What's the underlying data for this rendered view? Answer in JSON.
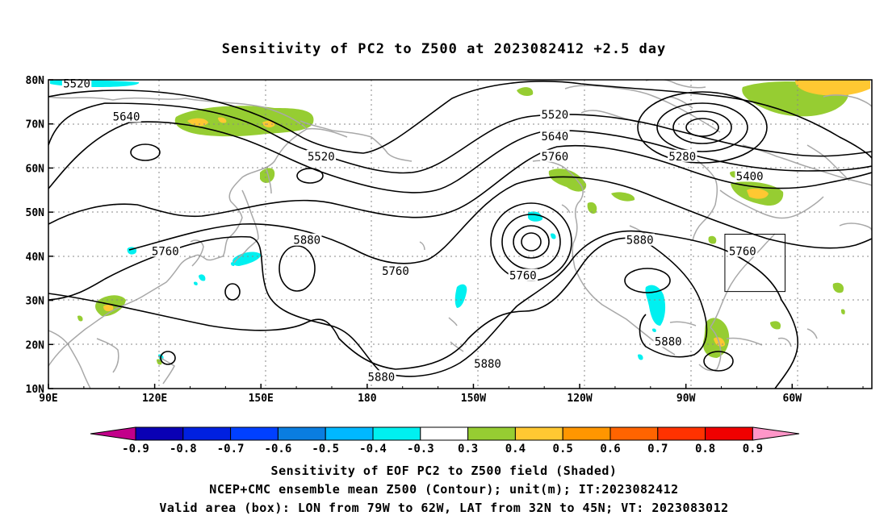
{
  "title": "Sensitivity of PC2 to Z500 at 2023082412 +2.5 day",
  "map": {
    "lon_labels": [
      "90E",
      "120E",
      "150E",
      "180",
      "150W",
      "120W",
      "90W",
      "60W"
    ],
    "lat_labels": [
      "80N",
      "70N",
      "60N",
      "50N",
      "40N",
      "30N",
      "20N",
      "10N"
    ],
    "contour_labels": [
      {
        "text": "5520",
        "lon": 98,
        "lat": 79
      },
      {
        "text": "5640",
        "lon": 112,
        "lat": 71.5
      },
      {
        "text": "5520",
        "lon": 167,
        "lat": 62.5
      },
      {
        "text": "5520",
        "lon": -127,
        "lat": 72
      },
      {
        "text": "5640",
        "lon": -127,
        "lat": 67
      },
      {
        "text": "5760",
        "lon": -127,
        "lat": 62.5
      },
      {
        "text": "5280",
        "lon": -91,
        "lat": 62.5
      },
      {
        "text": "5400",
        "lon": -72,
        "lat": 58
      },
      {
        "text": "5760",
        "lon": 123,
        "lat": 41
      },
      {
        "text": "5880",
        "lon": 163,
        "lat": 43.5
      },
      {
        "text": "5760",
        "lon": -172,
        "lat": 36.5
      },
      {
        "text": "5760",
        "lon": -136,
        "lat": 35.5
      },
      {
        "text": "5880",
        "lon": -103,
        "lat": 43.5
      },
      {
        "text": "5760",
        "lon": -74,
        "lat": 41
      },
      {
        "text": "5880",
        "lon": -95,
        "lat": 20.5
      },
      {
        "text": "5880",
        "lon": -176,
        "lat": 12.5
      },
      {
        "text": "5880",
        "lon": -146,
        "lat": 15.5
      }
    ],
    "valid_box": {
      "lon_min": -79,
      "lon_max": -62,
      "lat_min": 32,
      "lat_max": 45
    }
  },
  "colorbar": {
    "labels": [
      "-0.9",
      "-0.8",
      "-0.7",
      "-0.6",
      "-0.5",
      "-0.4",
      "-0.3",
      "0.3",
      "0.4",
      "0.5",
      "0.6",
      "0.7",
      "0.8",
      "0.9"
    ],
    "colors": [
      "#c2008a",
      "#0a00b4",
      "#0020e0",
      "#0040ff",
      "#0a7de0",
      "#00b8ff",
      "#00f0f0",
      "#ffffff",
      "#96cd32",
      "#ffc832",
      "#ff9600",
      "#ff6400",
      "#ff3200",
      "#f00000",
      "#ff96c8"
    ]
  },
  "captions": {
    "line1": "Sensitivity of EOF PC2 to Z500 field (Shaded)",
    "line2": "NCEP+CMC ensemble mean Z500 (Contour); unit(m); IT:2023082412",
    "line3": "Valid area (box): LON from 79W to 62W, LAT from 32N to 45N; VT: 2023083012"
  }
}
